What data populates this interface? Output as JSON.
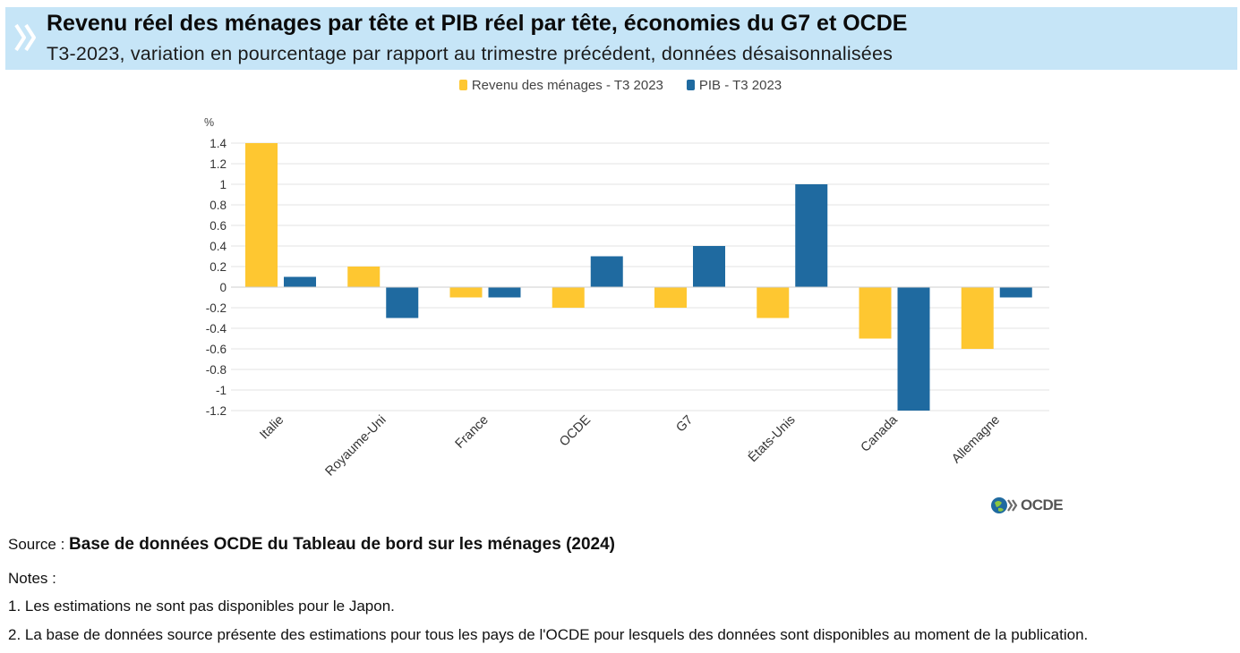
{
  "header": {
    "title": "Revenu réel des ménages par tête et PIB réel par tête, économies du G7 et OCDE",
    "subtitle": "T3-2023, variation en pourcentage par rapport au trimestre précédent, données désaisonnalisées",
    "icon": "double-chevron-icon"
  },
  "chart_data": {
    "type": "bar",
    "categories": [
      "Italie",
      "Royaume-Uni",
      "France",
      "OCDE",
      "G7",
      "États-Unis",
      "Canada",
      "Allemagne"
    ],
    "series": [
      {
        "name": "Revenu des ménages - T3 2023",
        "color": "#fec731",
        "values": [
          1.4,
          0.2,
          -0.1,
          -0.2,
          -0.2,
          -0.3,
          -0.5,
          -0.6
        ]
      },
      {
        "name": "PIB - T3 2023",
        "color": "#1f6aa0",
        "values": [
          0.1,
          -0.3,
          -0.1,
          0.3,
          0.4,
          1.0,
          -1.2,
          -0.1
        ]
      }
    ],
    "ylabel": "%",
    "ylim": [
      -1.2,
      1.4
    ],
    "yticks": [
      "1.4",
      "1.2",
      "1",
      "0.8",
      "0.6",
      "0.4",
      "0.2",
      "0",
      "-0.2",
      "-0.4",
      "-0.6",
      "-0.8",
      "-1",
      "-1.2"
    ],
    "grid": true,
    "legend": "top"
  },
  "logo": {
    "text": "OCDE",
    "icon": "oecd-globe-icon"
  },
  "footer": {
    "source_label": "Source : ",
    "source_value": "Base de données OCDE du Tableau de bord sur les ménages (2024)",
    "notes_label": "Notes :",
    "note1": "1. Les estimations ne sont pas disponibles pour le Japon.",
    "note2": "2. La base de données source présente des estimations pour tous les pays de l'OCDE pour lesquels des données sont disponibles au moment de la publication."
  }
}
